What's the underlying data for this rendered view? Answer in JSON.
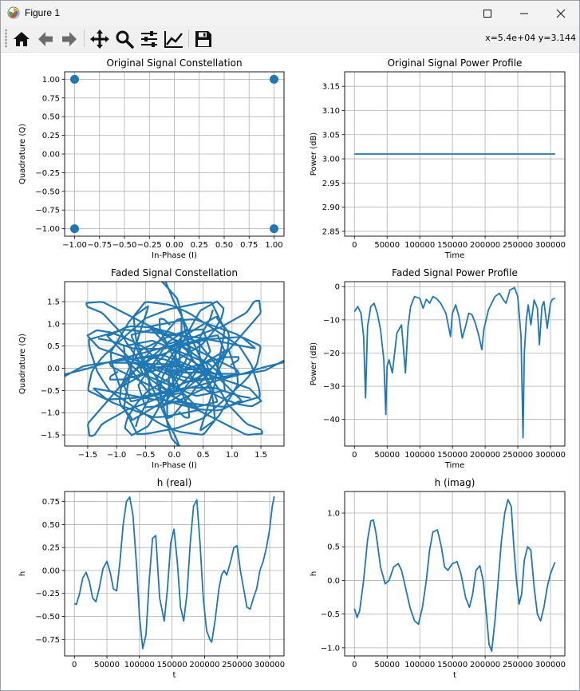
{
  "window": {
    "title": "Figure 1",
    "icon": "matplotlib-icon",
    "controls": [
      "minimize-icon",
      "maximize-icon",
      "close-icon"
    ]
  },
  "toolbar": {
    "buttons": [
      {
        "name": "home-button",
        "icon": "home-icon"
      },
      {
        "name": "back-button",
        "icon": "arrow-left-icon"
      },
      {
        "name": "forward-button",
        "icon": "arrow-right-icon"
      },
      {
        "name": "pan-button",
        "icon": "move-icon"
      },
      {
        "name": "zoom-button",
        "icon": "magnifier-icon"
      },
      {
        "name": "configure-subplots-button",
        "icon": "sliders-icon"
      },
      {
        "name": "edit-axes-button",
        "icon": "line-chart-icon"
      },
      {
        "name": "save-button",
        "icon": "floppy-disk-icon"
      }
    ],
    "coords": "x=5.4e+04 y=3.144"
  },
  "colors": {
    "series": "#1f77b4",
    "grid": "#b0b0b0",
    "axes": "#000000"
  },
  "chart_data": [
    {
      "type": "scatter",
      "title": "Original Signal Constellation",
      "xlabel": "In-Phase (I)",
      "ylabel": "Quadrature (Q)",
      "xlim": [
        -1.1,
        1.1
      ],
      "ylim": [
        -1.1,
        1.1
      ],
      "xticks": [
        "−1.00",
        "−0.75",
        "−0.50",
        "−0.25",
        "0.00",
        "0.25",
        "0.50",
        "0.75",
        "1.00"
      ],
      "yticks": [
        "−1.00",
        "−0.75",
        "−0.50",
        "−0.25",
        "0.00",
        "0.25",
        "0.50",
        "0.75",
        "1.00"
      ],
      "grid": true,
      "points": [
        [
          -1,
          1
        ],
        [
          1,
          1
        ],
        [
          -1,
          -1
        ],
        [
          1,
          -1
        ]
      ]
    },
    {
      "type": "line",
      "title": "Original Signal Power Profile",
      "xlabel": "Time",
      "ylabel": "Power (dB)",
      "xlim": [
        -15000,
        322000
      ],
      "ylim": [
        2.84,
        3.18
      ],
      "xticks": [
        "0",
        "50000",
        "100000",
        "150000",
        "200000",
        "250000",
        "300000"
      ],
      "yticks": [
        "2.85",
        "2.90",
        "2.95",
        "3.00",
        "3.05",
        "3.10",
        "3.15"
      ],
      "grid": true,
      "x": [
        0,
        307200
      ],
      "y": [
        3.01,
        3.01
      ]
    },
    {
      "type": "scatter",
      "title": "Faded Signal Constellation",
      "xlabel": "In-Phase (I)",
      "ylabel": "Quadrature (Q)",
      "xlim": [
        -1.9,
        1.9
      ],
      "ylim": [
        -1.75,
        1.95
      ],
      "xticks": [
        "−1.5",
        "−1.0",
        "−0.5",
        "0.0",
        "0.5",
        "1.0",
        "1.5"
      ],
      "yticks": [
        "−1.5",
        "−1.0",
        "−0.5",
        "0.0",
        "0.5",
        "1.0",
        "1.5"
      ],
      "grid": true,
      "note_points": "dense curves of faded QPSK symbols (four superposed orbits)"
    },
    {
      "type": "line",
      "title": "Faded Signal Power Profile",
      "xlabel": "Time",
      "ylabel": "Power (dB)",
      "xlim": [
        -15000,
        322000
      ],
      "ylim": [
        -48,
        1.5
      ],
      "xticks": [
        "0",
        "50000",
        "100000",
        "150000",
        "200000",
        "250000",
        "300000"
      ],
      "yticks": [
        "−40",
        "−30",
        "−20",
        "−10",
        "0"
      ],
      "grid": true,
      "x": [
        0,
        5000,
        10000,
        14000,
        17000,
        20000,
        25000,
        30000,
        35000,
        40000,
        45000,
        48000,
        50000,
        53000,
        58000,
        65000,
        72000,
        78000,
        82000,
        86000,
        92000,
        100000,
        105000,
        110000,
        115000,
        120000,
        125000,
        132000,
        140000,
        147000,
        150000,
        155000,
        160000,
        165000,
        170000,
        175000,
        180000,
        185000,
        190000,
        195000,
        198000,
        205000,
        215000,
        222000,
        228000,
        232000,
        238000,
        245000,
        250000,
        255000,
        258000,
        260000,
        263000,
        266000,
        270000,
        275000,
        280000,
        283000,
        287000,
        290000,
        295000,
        300000,
        303000,
        307000
      ],
      "y": [
        -7.5,
        -6,
        -8,
        -15,
        -33.5,
        -12,
        -6,
        -5,
        -8,
        -13,
        -22,
        -38.5,
        -24,
        -22,
        -26,
        -14,
        -11.5,
        -26,
        -12,
        -6,
        -3,
        -3.5,
        -6.5,
        -3.8,
        -5,
        -3,
        -3.5,
        -5,
        -8,
        -15,
        -8,
        -5.5,
        -9,
        -15.5,
        -12,
        -8,
        -8.5,
        -11,
        -14.5,
        -19,
        -13,
        -7,
        -3,
        -2,
        -4,
        -5,
        -1,
        -0.3,
        -3,
        -15,
        -45.5,
        -20,
        -10,
        -5.5,
        -11.5,
        -4,
        -6.5,
        -17.5,
        -6,
        -4.5,
        -12.5,
        -5,
        -3.8,
        -3.5
      ]
    },
    {
      "type": "line",
      "title": "h (real)",
      "xlabel": "t",
      "ylabel": "h",
      "xlim": [
        -15000,
        322000
      ],
      "ylim": [
        -0.93,
        0.86
      ],
      "xticks": [
        "0",
        "50000",
        "100000",
        "150000",
        "200000",
        "250000",
        "300000"
      ],
      "yticks": [
        "−0.75",
        "−0.50",
        "−0.25",
        "0.00",
        "0.25",
        "0.50",
        "0.75"
      ],
      "grid": true,
      "x": [
        0,
        3000,
        8000,
        13000,
        18000,
        23000,
        28000,
        33000,
        38000,
        44000,
        50000,
        55000,
        60000,
        65000,
        70000,
        75000,
        80000,
        85000,
        90000,
        96000,
        100000,
        105000,
        110000,
        115000,
        120000,
        125000,
        131000,
        138000,
        143000,
        148000,
        153000,
        158000,
        163000,
        168000,
        173000,
        178000,
        183000,
        188000,
        193000,
        198000,
        203000,
        208000,
        211000,
        216000,
        222000,
        226000,
        230000,
        234000,
        240000,
        245000,
        250000,
        255000,
        260000,
        265000,
        270000,
        275000,
        280000,
        285000,
        290000,
        295000,
        300000,
        304000,
        307000
      ],
      "y": [
        -0.36,
        -0.37,
        -0.25,
        -0.08,
        -0.02,
        -0.12,
        -0.3,
        -0.34,
        -0.2,
        0.02,
        0.1,
        -0.02,
        -0.2,
        -0.22,
        0.1,
        0.5,
        0.75,
        0.8,
        0.6,
        0.0,
        -0.5,
        -0.85,
        -0.7,
        -0.1,
        0.35,
        0.38,
        -0.3,
        -0.55,
        -0.2,
        0.3,
        0.45,
        0.1,
        -0.4,
        -0.55,
        -0.25,
        0.3,
        0.7,
        0.77,
        0.3,
        -0.3,
        -0.65,
        -0.75,
        -0.78,
        -0.55,
        -0.2,
        -0.05,
        0.0,
        -0.05,
        0.1,
        0.25,
        0.27,
        0.0,
        -0.2,
        -0.4,
        -0.42,
        -0.3,
        -0.2,
        0.0,
        0.1,
        0.25,
        0.45,
        0.7,
        0.81
      ]
    },
    {
      "type": "line",
      "title": "h (imag)",
      "xlabel": "t",
      "ylabel": "h",
      "xlim": [
        -15000,
        322000
      ],
      "ylim": [
        -1.12,
        1.32
      ],
      "xticks": [
        "0",
        "50000",
        "100000",
        "150000",
        "200000",
        "250000",
        "300000"
      ],
      "yticks": [
        "−1.0",
        "−0.5",
        "0.0",
        "0.5",
        "1.0"
      ],
      "grid": true,
      "x": [
        0,
        4000,
        8000,
        14000,
        20000,
        25000,
        29000,
        33000,
        40000,
        47000,
        53000,
        60000,
        67000,
        72000,
        78000,
        85000,
        92000,
        98000,
        104000,
        110000,
        115000,
        120000,
        127000,
        133000,
        138000,
        143000,
        150000,
        157000,
        163000,
        170000,
        176000,
        181000,
        186000,
        192000,
        197000,
        202000,
        206000,
        210000,
        215000,
        220000,
        225000,
        230000,
        235000,
        240000,
        244000,
        248000,
        252000,
        256000,
        260000,
        265000,
        270000,
        275000,
        280000,
        285000,
        290000,
        295000,
        300000,
        304000,
        307000
      ],
      "y": [
        -0.42,
        -0.55,
        -0.45,
        0.0,
        0.6,
        0.88,
        0.9,
        0.7,
        0.2,
        -0.05,
        0.0,
        0.2,
        0.25,
        0.15,
        -0.1,
        -0.4,
        -0.6,
        -0.65,
        -0.4,
        0.0,
        0.45,
        0.72,
        0.75,
        0.5,
        0.2,
        0.15,
        0.25,
        0.28,
        0.1,
        -0.25,
        -0.4,
        -0.2,
        0.15,
        0.22,
        0.0,
        -0.5,
        -0.95,
        -1.05,
        -0.6,
        0.0,
        0.6,
        1.0,
        1.2,
        1.1,
        0.5,
        0.0,
        -0.35,
        -0.2,
        0.3,
        0.5,
        0.45,
        -0.1,
        -0.5,
        -0.6,
        -0.4,
        -0.1,
        0.1,
        0.2,
        0.27
      ]
    }
  ]
}
